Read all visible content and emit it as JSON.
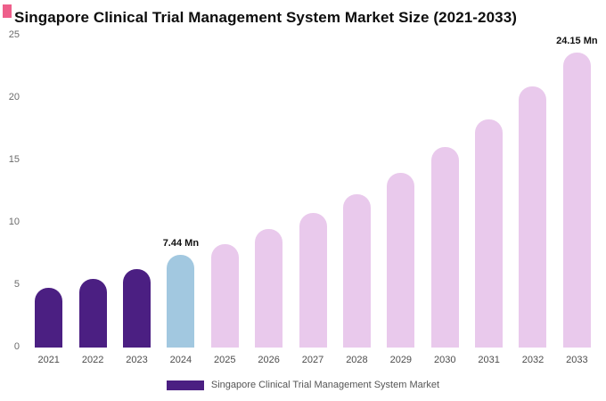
{
  "accent_color": "#ee5f8b",
  "legend": {
    "label": "Singapore Clinical Trial Management System Market",
    "swatch_color": "#4b1f82"
  },
  "chart_data": {
    "type": "bar",
    "title": "Singapore Clinical Trial Management System Market Size (2021-2033)",
    "xlabel": "",
    "ylabel": "",
    "categories": [
      "2021",
      "2022",
      "2023",
      "2024",
      "2025",
      "2026",
      "2027",
      "2028",
      "2029",
      "2030",
      "2031",
      "2032",
      "2033"
    ],
    "values": [
      4.8,
      5.5,
      6.3,
      7.44,
      8.3,
      9.5,
      10.8,
      12.3,
      14.0,
      16.1,
      18.3,
      20.9,
      24.15
    ],
    "bar_colors": [
      "#4b1f82",
      "#4b1f82",
      "#4b1f82",
      "#a2c8e0",
      "#e9c9ec",
      "#e9c9ec",
      "#e9c9ec",
      "#e9c9ec",
      "#e9c9ec",
      "#e9c9ec",
      "#e9c9ec",
      "#e9c9ec",
      "#e9c9ec"
    ],
    "annotations": [
      {
        "index": 3,
        "text": "7.44 Mn"
      },
      {
        "index": 12,
        "text": "24.15 Mn"
      }
    ],
    "ylim": [
      0,
      25
    ],
    "yticks": [
      0,
      5,
      10,
      15,
      20,
      25
    ],
    "grid": false,
    "legend_position": "bottom"
  }
}
